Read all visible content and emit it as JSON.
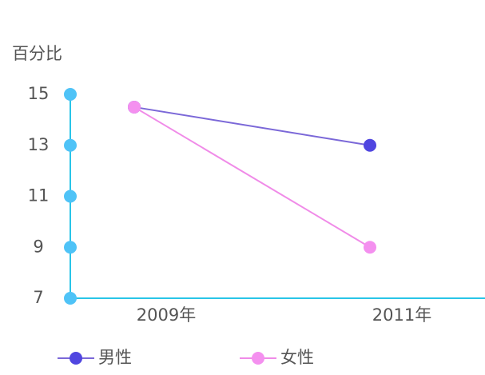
{
  "chart_data": {
    "type": "line",
    "y_label": "百分比",
    "categories": [
      "2009年",
      "2011年"
    ],
    "series": [
      {
        "name": "男性",
        "color": "#5046e0",
        "line_color": "#7b68d8",
        "values": [
          14.5,
          13
        ]
      },
      {
        "name": "女性",
        "color": "#f490ef",
        "line_color": "#f08be8",
        "values": [
          14.5,
          9
        ]
      }
    ],
    "ylim": [
      7,
      15
    ],
    "yticks": [
      7,
      9,
      11,
      13,
      15
    ],
    "axis_color": "#29c5e8",
    "tick_color": "#4fc3f7"
  }
}
